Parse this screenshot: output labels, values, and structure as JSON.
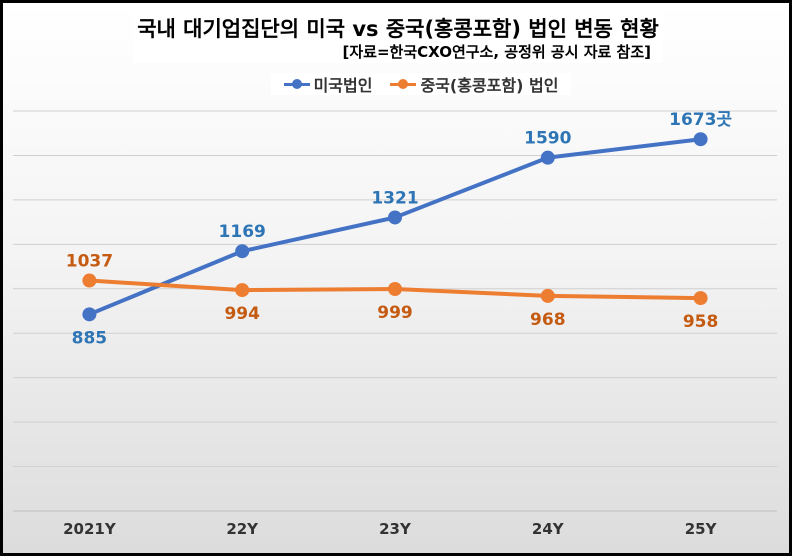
{
  "title": "국내 대기업집단의 미국 vs 중국(홍콩포함) 법인 변동 현황",
  "source_note": "[자료=한국CXO연구소, 공정위 공시 자료 참조]",
  "colors": {
    "us": "#4472c4",
    "cn": "#ed7d31",
    "us_label": "#2e75b6",
    "cn_label": "#c55a11"
  },
  "chart_data": {
    "type": "line",
    "categories": [
      "2021Y",
      "22Y",
      "23Y",
      "24Y",
      "25Y"
    ],
    "series": [
      {
        "name": "미국법인",
        "values": [
          885,
          1169,
          1321,
          1590,
          1673
        ],
        "labels": [
          "885",
          "1169",
          "1321",
          "1590",
          "1673곳"
        ]
      },
      {
        "name": "중국(홍콩포함) 법인",
        "values": [
          1037,
          994,
          999,
          968,
          958
        ],
        "labels": [
          "1037",
          "994",
          "999",
          "968",
          "958"
        ]
      }
    ],
    "ylim": [
      0,
      1800
    ],
    "grid": true,
    "legend_position": "top"
  }
}
